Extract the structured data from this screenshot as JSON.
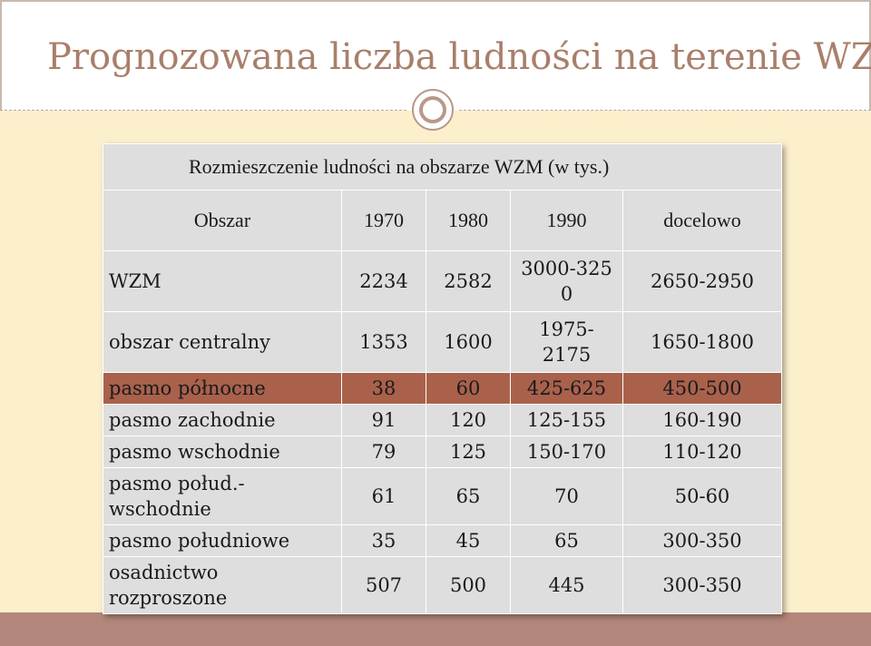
{
  "page": {
    "title": "Prognozowana liczba ludności na terenie WZM"
  },
  "colors": {
    "title_text": "#a97f6a",
    "content_background": "#fcefcc",
    "bottom_band": "#b3877b",
    "table_cell": "#dedede",
    "highlight_row": "#a9614c"
  },
  "table": {
    "caption": "Rozmieszczenie ludności na obszarze WZM (w tys.)",
    "headers": [
      "Obszar",
      "1970",
      "1980",
      "1990",
      "docelowo"
    ],
    "rows": [
      {
        "label": "WZM",
        "c1970": "2234",
        "c1980": "2582",
        "c1990": "3000-3250",
        "target": "2650-2950"
      },
      {
        "label": "obszar centralny",
        "c1970": "1353",
        "c1980": "1600",
        "c1990": "1975-2175",
        "target": "1650-1800"
      },
      {
        "label": "pasmo północne",
        "c1970": "38",
        "c1980": "60",
        "c1990": "425-625",
        "target": "450-500"
      },
      {
        "label": "pasmo zachodnie",
        "c1970": "91",
        "c1980": "120",
        "c1990": "125-155",
        "target": "160-190"
      },
      {
        "label": "pasmo wschodnie",
        "c1970": "79",
        "c1980": "125",
        "c1990": "150-170",
        "target": "110-120"
      },
      {
        "label": "pasmo połud.-wschodnie",
        "c1970": "61",
        "c1980": "65",
        "c1990": "70",
        "target": "50-60"
      },
      {
        "label": "pasmo południowe",
        "c1970": "35",
        "c1980": "45",
        "c1990": "65",
        "target": "300-350"
      },
      {
        "label": "osadnictwo rozproszone",
        "c1970": "507",
        "c1980": "500",
        "c1990": "445",
        "target": "300-350"
      }
    ]
  }
}
